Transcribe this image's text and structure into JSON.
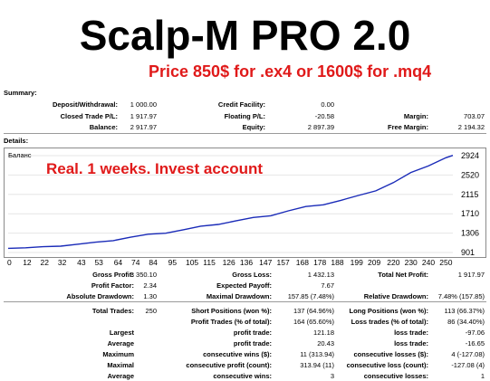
{
  "header": {
    "title": "Scalp-M PRO 2.0",
    "price": "Price 850$ for .ex4 or 1600$ for .mq4"
  },
  "summary": {
    "label": "Summary:",
    "rows": [
      [
        {
          "label": "Deposit/Withdrawal:",
          "value": "1 000.00"
        },
        {
          "label": "Credit Facility:",
          "value": "0.00"
        },
        {
          "label": "",
          "value": ""
        }
      ],
      [
        {
          "label": "Closed Trade P/L:",
          "value": "1 917.97"
        },
        {
          "label": "Floating P/L:",
          "value": "-20.58"
        },
        {
          "label": "Margin:",
          "value": "703.07"
        }
      ],
      [
        {
          "label": "Balance:",
          "value": "2 917.97"
        },
        {
          "label": "Equity:",
          "value": "2 897.39"
        },
        {
          "label": "Free Margin:",
          "value": "2 194.32"
        }
      ]
    ]
  },
  "details": {
    "label": "Details:",
    "chart_tag": "Баланс",
    "note": "Real. 1 weeks. Invest account"
  },
  "chart_data": {
    "type": "line",
    "title": "",
    "legend": "Баланс",
    "xlabel": "",
    "ylabel": "",
    "x_ticks": [
      "0",
      "12",
      "22",
      "32",
      "43",
      "53",
      "64",
      "74",
      "84",
      "95",
      "105",
      "115",
      "126",
      "136",
      "147",
      "157",
      "168",
      "178",
      "188",
      "199",
      "209",
      "220",
      "230",
      "240",
      "250"
    ],
    "y_ticks": [
      901,
      1306,
      1710,
      2115,
      2520,
      2924
    ],
    "xlim": [
      0,
      254
    ],
    "ylim": [
      901,
      2924
    ],
    "series": [
      {
        "x": [
          0,
          10,
          20,
          30,
          40,
          50,
          60,
          70,
          80,
          90,
          100,
          110,
          120,
          130,
          140,
          150,
          160,
          170,
          180,
          190,
          200,
          210,
          220,
          230,
          240,
          250,
          254
        ],
        "values": [
          1000,
          1000,
          1010,
          1045,
          1075,
          1105,
          1160,
          1220,
          1270,
          1315,
          1375,
          1440,
          1500,
          1560,
          1620,
          1680,
          1770,
          1850,
          1910,
          1990,
          2080,
          2200,
          2360,
          2560,
          2720,
          2880,
          2918
        ]
      }
    ]
  },
  "stats": {
    "rows": [
      {
        "cells": [
          {
            "label": "Gross Profit:",
            "value": "3 350.10"
          },
          {
            "label": "Gross Loss:",
            "value": "1 432.13"
          },
          {
            "label": "Total Net Profit:",
            "value": "1 917.97"
          }
        ]
      },
      {
        "cells": [
          {
            "label": "Profit Factor:",
            "value": "2.34"
          },
          {
            "label": "Expected Payoff:",
            "value": "7.67"
          },
          {
            "label": "",
            "value": ""
          }
        ]
      },
      {
        "cells": [
          {
            "label": "Absolute Drawdown:",
            "value": "1.30"
          },
          {
            "label": "Maximal Drawdown:",
            "value": "157.85 (7.48%)"
          },
          {
            "label": "Relative Drawdown:",
            "value": "7.48% (157.85)"
          }
        ]
      },
      {
        "cells": [
          {
            "label": "Total Trades:",
            "value": "250"
          },
          {
            "label": "Short Positions (won %):",
            "value": "137 (64.96%)"
          },
          {
            "label": "Long Positions (won %):",
            "value": "113 (66.37%)"
          }
        ]
      },
      {
        "cells": [
          {
            "label": "",
            "value": ""
          },
          {
            "label": "Profit Trades (% of total):",
            "value": "164 (65.60%)"
          },
          {
            "label": "Loss trades (% of total):",
            "value": "86 (34.40%)"
          }
        ]
      },
      {
        "cells": [
          {
            "label": "Largest",
            "value": ""
          },
          {
            "label": "profit trade:",
            "value": "121.18"
          },
          {
            "label": "loss trade:",
            "value": "-97.06"
          }
        ]
      },
      {
        "cells": [
          {
            "label": "Average",
            "value": ""
          },
          {
            "label": "profit trade:",
            "value": "20.43"
          },
          {
            "label": "loss trade:",
            "value": "-16.65"
          }
        ]
      },
      {
        "cells": [
          {
            "label": "Maximum",
            "value": ""
          },
          {
            "label": "consecutive wins ($):",
            "value": "11 (313.94)"
          },
          {
            "label": "consecutive losses ($):",
            "value": "4 (-127.08)"
          }
        ]
      },
      {
        "cells": [
          {
            "label": "Maximal",
            "value": ""
          },
          {
            "label": "consecutive profit (count):",
            "value": "313.94 (11)"
          },
          {
            "label": "consecutive loss (count):",
            "value": "-127.08 (4)"
          }
        ]
      },
      {
        "cells": [
          {
            "label": "Average",
            "value": ""
          },
          {
            "label": "consecutive wins:",
            "value": "3"
          },
          {
            "label": "consecutive losses:",
            "value": "1"
          }
        ]
      }
    ]
  }
}
